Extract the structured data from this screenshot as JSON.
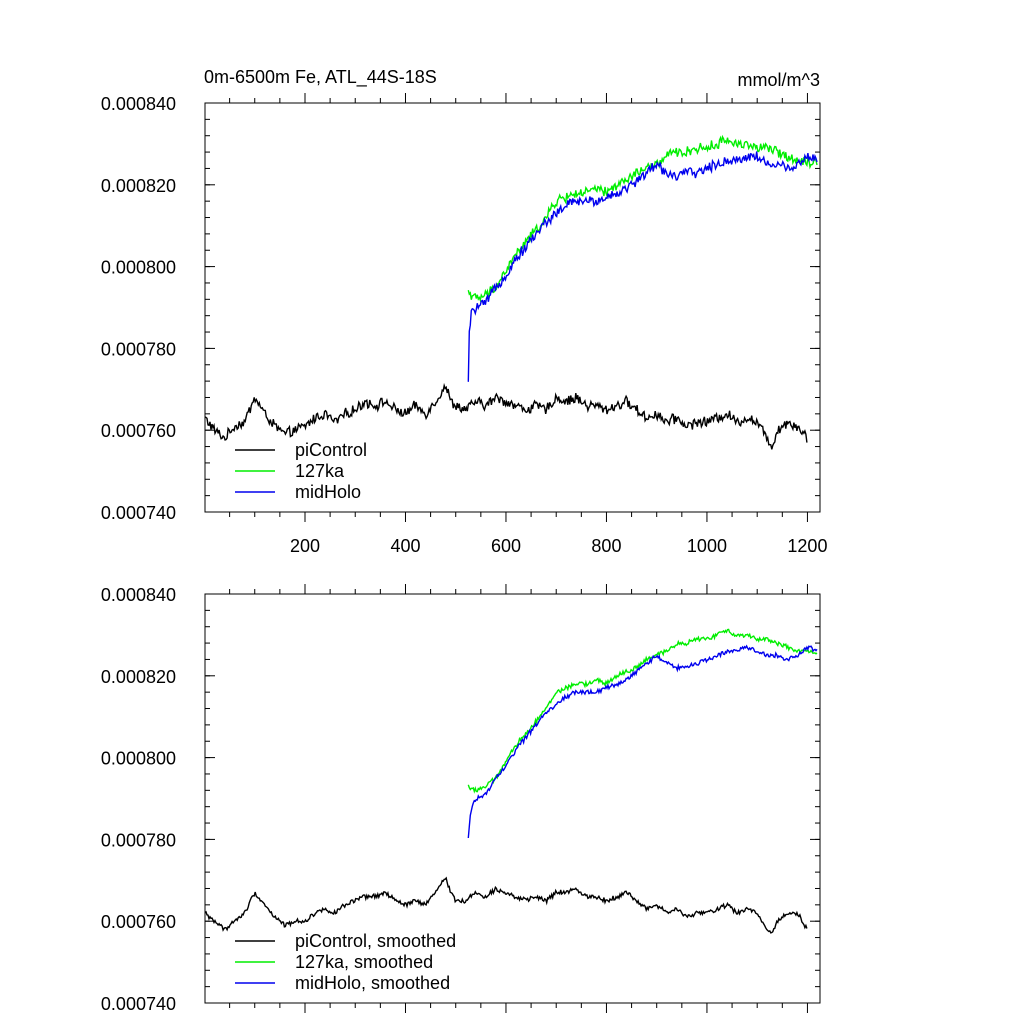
{
  "figure": {
    "title_left": "0m-6500m Fe, ATL_44S-18S",
    "title_right": "mmol/m^3"
  },
  "colors": {
    "piControl": "#000000",
    "127ka": "#00ee00",
    "midHolo": "#0000ee",
    "axis": "#000000"
  },
  "chart_data": [
    {
      "type": "line",
      "panel": "top",
      "title": "0m-6500m Fe, ATL_44S-18S",
      "units": "mmol/m^3",
      "xlim": [
        1,
        1225
      ],
      "ylim": [
        0.00074,
        0.00084
      ],
      "xticks": [
        200,
        400,
        600,
        800,
        1000,
        1200
      ],
      "xtick_labels": [
        "200",
        "400",
        "600",
        "800",
        "1000",
        "1200"
      ],
      "yticks": [
        0.00074,
        0.00076,
        0.00078,
        0.0008,
        0.00082,
        0.00084
      ],
      "ytick_labels": [
        "0.000740",
        "0.000760",
        "0.000780",
        "0.000800",
        "0.000820",
        "0.000840"
      ],
      "legend_position": "bottom-left",
      "noise": "high",
      "series": [
        {
          "name": "piControl",
          "color_key": "piControl",
          "x": [
            1,
            20,
            40,
            60,
            80,
            100,
            120,
            140,
            160,
            180,
            200,
            220,
            240,
            260,
            280,
            300,
            320,
            340,
            360,
            380,
            400,
            420,
            440,
            460,
            480,
            490,
            500,
            520,
            540,
            560,
            580,
            600,
            620,
            640,
            660,
            680,
            700,
            720,
            740,
            760,
            780,
            800,
            820,
            840,
            860,
            880,
            900,
            920,
            940,
            960,
            980,
            1000,
            1020,
            1040,
            1060,
            1080,
            1100,
            1120,
            1130,
            1140,
            1160,
            1180,
            1200
          ],
          "y": [
            0.000763,
            0.00076,
            0.000758,
            0.000761,
            0.000762,
            0.000768,
            0.000764,
            0.000761,
            0.000759,
            0.00076,
            0.000761,
            0.000763,
            0.000764,
            0.000762,
            0.000764,
            0.000765,
            0.000767,
            0.000766,
            0.000767,
            0.000765,
            0.000764,
            0.000766,
            0.000764,
            0.000767,
            0.000771,
            0.000767,
            0.000766,
            0.000765,
            0.000767,
            0.000766,
            0.000768,
            0.000767,
            0.000766,
            0.000765,
            0.000766,
            0.000765,
            0.000768,
            0.000767,
            0.000768,
            0.000766,
            0.000766,
            0.000765,
            0.000766,
            0.000767,
            0.000765,
            0.000763,
            0.000764,
            0.000762,
            0.000763,
            0.000761,
            0.000762,
            0.000762,
            0.000763,
            0.000764,
            0.000762,
            0.000763,
            0.000762,
            0.000758,
            0.000756,
            0.00076,
            0.000762,
            0.000761,
            0.000758
          ]
        },
        {
          "name": "127ka",
          "color_key": "127ka",
          "x": [
            525,
            540,
            560,
            580,
            600,
            620,
            640,
            660,
            680,
            700,
            720,
            740,
            760,
            780,
            800,
            820,
            840,
            860,
            880,
            900,
            920,
            940,
            960,
            980,
            1000,
            1020,
            1040,
            1060,
            1080,
            1100,
            1120,
            1140,
            1160,
            1180,
            1200,
            1220
          ],
          "y": [
            0.000794,
            0.000792,
            0.000793,
            0.000795,
            0.000799,
            0.000803,
            0.000806,
            0.000809,
            0.000812,
            0.000816,
            0.000817,
            0.000818,
            0.000818,
            0.000819,
            0.000818,
            0.00082,
            0.000821,
            0.000823,
            0.000824,
            0.000825,
            0.000827,
            0.000828,
            0.000828,
            0.000829,
            0.000829,
            0.00083,
            0.000831,
            0.00083,
            0.00083,
            0.000829,
            0.000829,
            0.000828,
            0.000827,
            0.000826,
            0.000826,
            0.000825
          ]
        },
        {
          "name": "midHolo",
          "color_key": "midHolo",
          "x": [
            525,
            527,
            530,
            540,
            560,
            580,
            600,
            620,
            640,
            660,
            680,
            700,
            720,
            740,
            760,
            780,
            800,
            820,
            840,
            860,
            880,
            900,
            920,
            940,
            960,
            980,
            1000,
            1020,
            1040,
            1060,
            1080,
            1100,
            1120,
            1140,
            1160,
            1180,
            1200,
            1220
          ],
          "y": [
            0.000771,
            0.000784,
            0.000788,
            0.00079,
            0.000791,
            0.000795,
            0.000798,
            0.000802,
            0.000805,
            0.000808,
            0.000811,
            0.000813,
            0.000815,
            0.000816,
            0.000816,
            0.000816,
            0.000817,
            0.000818,
            0.000819,
            0.000821,
            0.000823,
            0.000825,
            0.000823,
            0.000822,
            0.000823,
            0.000823,
            0.000824,
            0.000825,
            0.000826,
            0.000826,
            0.000827,
            0.000827,
            0.000825,
            0.000825,
            0.000824,
            0.000825,
            0.000827,
            0.000826
          ]
        }
      ],
      "legend": [
        {
          "label": "piControl",
          "color_key": "piControl"
        },
        {
          "label": "127ka",
          "color_key": "127ka"
        },
        {
          "label": "midHolo",
          "color_key": "midHolo"
        }
      ]
    },
    {
      "type": "line",
      "panel": "bottom",
      "title": "",
      "xlim": [
        1,
        1225
      ],
      "ylim": [
        0.00074,
        0.00084
      ],
      "xticks": [
        200,
        400,
        600,
        800,
        1000,
        1200
      ],
      "xtick_labels": [],
      "yticks": [
        0.00074,
        0.00076,
        0.00078,
        0.0008,
        0.00082,
        0.00084
      ],
      "ytick_labels": [
        "0.000740",
        "0.000760",
        "0.000780",
        "0.000800",
        "0.000820",
        "0.000840"
      ],
      "legend_position": "bottom-left",
      "noise": "low",
      "series": [
        {
          "name": "piControl, smoothed",
          "color_key": "piControl",
          "x": [
            1,
            20,
            40,
            60,
            80,
            100,
            120,
            140,
            160,
            180,
            200,
            220,
            240,
            260,
            280,
            300,
            320,
            340,
            360,
            380,
            400,
            420,
            440,
            460,
            480,
            490,
            500,
            520,
            540,
            560,
            580,
            600,
            620,
            640,
            660,
            680,
            700,
            720,
            740,
            760,
            780,
            800,
            820,
            840,
            860,
            880,
            900,
            920,
            940,
            960,
            980,
            1000,
            1020,
            1040,
            1060,
            1080,
            1100,
            1120,
            1130,
            1140,
            1160,
            1180,
            1200
          ],
          "y": [
            0.000762,
            0.00076,
            0.000758,
            0.00076,
            0.000762,
            0.000767,
            0.000764,
            0.000761,
            0.000759,
            0.00076,
            0.00076,
            0.000762,
            0.000763,
            0.000762,
            0.000764,
            0.000765,
            0.000766,
            0.000766,
            0.000767,
            0.000765,
            0.000764,
            0.000765,
            0.000764,
            0.000767,
            0.000771,
            0.000767,
            0.000765,
            0.000765,
            0.000767,
            0.000766,
            0.000768,
            0.000767,
            0.000766,
            0.000765,
            0.000766,
            0.000765,
            0.000767,
            0.000767,
            0.000768,
            0.000766,
            0.000766,
            0.000765,
            0.000766,
            0.000767,
            0.000765,
            0.000763,
            0.000764,
            0.000762,
            0.000763,
            0.000761,
            0.000762,
            0.000762,
            0.000763,
            0.000764,
            0.000762,
            0.000763,
            0.000762,
            0.000758,
            0.000757,
            0.00076,
            0.000762,
            0.000762,
            0.000758
          ]
        },
        {
          "name": "127ka, smoothed",
          "color_key": "127ka",
          "x": [
            525,
            540,
            560,
            580,
            600,
            620,
            640,
            660,
            680,
            700,
            720,
            740,
            760,
            780,
            800,
            820,
            840,
            860,
            880,
            900,
            920,
            940,
            960,
            980,
            1000,
            1020,
            1040,
            1060,
            1080,
            1100,
            1120,
            1140,
            1160,
            1180,
            1200,
            1220
          ],
          "y": [
            0.000793,
            0.000792,
            0.000793,
            0.000795,
            0.000799,
            0.000803,
            0.000806,
            0.000809,
            0.000812,
            0.000816,
            0.000817,
            0.000818,
            0.000818,
            0.000819,
            0.000818,
            0.00082,
            0.000821,
            0.000822,
            0.000824,
            0.000825,
            0.000826,
            0.000828,
            0.000828,
            0.000829,
            0.000829,
            0.00083,
            0.000831,
            0.00083,
            0.00083,
            0.000829,
            0.000829,
            0.000828,
            0.000827,
            0.000826,
            0.000826,
            0.000825
          ]
        },
        {
          "name": "midHolo, smoothed",
          "color_key": "midHolo",
          "x": [
            525,
            530,
            540,
            560,
            580,
            600,
            620,
            640,
            660,
            680,
            700,
            720,
            740,
            760,
            780,
            800,
            820,
            840,
            860,
            880,
            900,
            920,
            940,
            960,
            980,
            1000,
            1020,
            1040,
            1060,
            1080,
            1100,
            1120,
            1140,
            1160,
            1180,
            1200,
            1220
          ],
          "y": [
            0.00078,
            0.000787,
            0.00079,
            0.000791,
            0.000795,
            0.000798,
            0.000802,
            0.000805,
            0.000808,
            0.000811,
            0.000813,
            0.000815,
            0.000816,
            0.000816,
            0.000816,
            0.000817,
            0.000818,
            0.000819,
            0.000821,
            0.000823,
            0.000825,
            0.000823,
            0.000822,
            0.000822,
            0.000823,
            0.000824,
            0.000825,
            0.000826,
            0.000826,
            0.000827,
            0.000826,
            0.000825,
            0.000825,
            0.000824,
            0.000825,
            0.000827,
            0.000826
          ]
        }
      ],
      "legend": [
        {
          "label": "piControl, smoothed",
          "color_key": "piControl"
        },
        {
          "label": "127ka, smoothed",
          "color_key": "127ka"
        },
        {
          "label": "midHolo, smoothed",
          "color_key": "midHolo"
        }
      ]
    }
  ]
}
